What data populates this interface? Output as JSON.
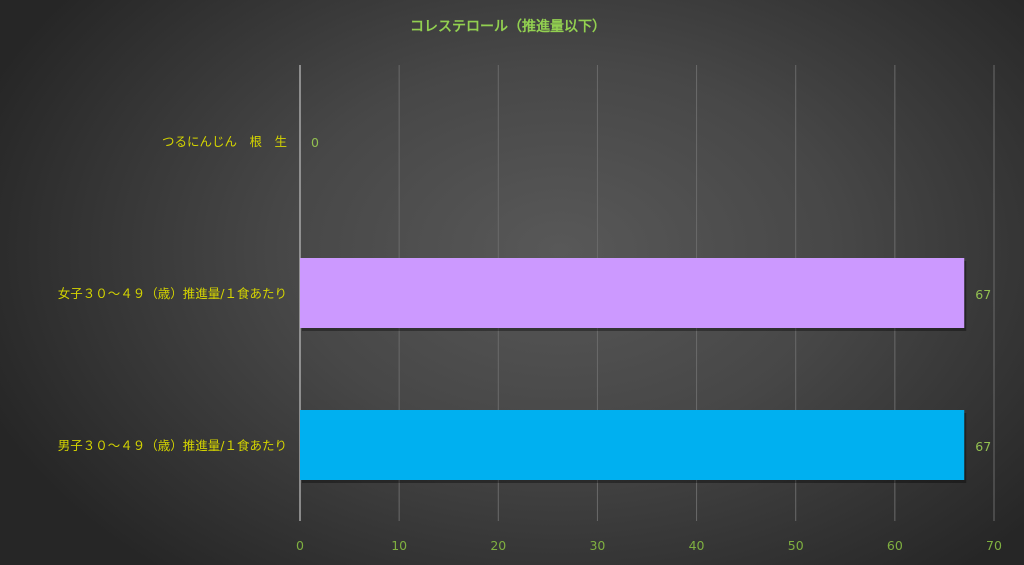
{
  "chart_data": {
    "type": "bar",
    "orientation": "horizontal",
    "title": "コレステロール（推進量以下）",
    "categories": [
      "つるにんじん　根　生",
      "女子３０～４９（歳）推進量/１食あたり",
      "男子３０～４９（歳）推進量/１食あたり"
    ],
    "values": [
      0,
      67,
      67
    ],
    "data_labels": [
      "0",
      "67",
      "67"
    ],
    "bar_colors": [
      "#cc99ff",
      "#cc99ff",
      "#00b0f0"
    ],
    "xlim": [
      0,
      70
    ],
    "xticks": [
      "0",
      "10",
      "20",
      "30",
      "40",
      "50",
      "60",
      "70"
    ],
    "grid": true,
    "legend": "none",
    "xlabel": "",
    "ylabel": ""
  }
}
